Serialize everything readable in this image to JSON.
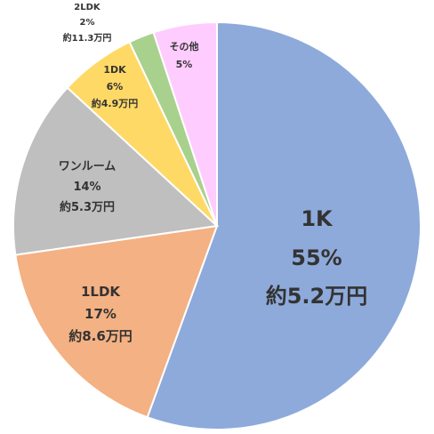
{
  "chart_data": {
    "type": "pie",
    "slices": [
      {
        "name": "1K",
        "percent_label": "55%",
        "rent_label": "約5.2万円",
        "value": 55,
        "color": "#8eaadb"
      },
      {
        "name": "1LDK",
        "percent_label": "17%",
        "rent_label": "約8.6万円",
        "value": 17,
        "color": "#f4b183"
      },
      {
        "name": "ワンルーム",
        "percent_label": "14%",
        "rent_label": "約5.3万円",
        "value": 14,
        "color": "#bfbfbf"
      },
      {
        "name": "1DK",
        "percent_label": "6%",
        "rent_label": "約4.9万円",
        "value": 6,
        "color": "#ffd966"
      },
      {
        "name": "2LDK",
        "percent_label": "2%",
        "rent_label": "約11.3万円",
        "value": 2,
        "color": "#a9d18e"
      },
      {
        "name": "その他",
        "percent_label": "5%",
        "rent_label": "",
        "value": 5,
        "color": "#ffccff"
      }
    ],
    "start_angle_deg": 0,
    "direction": "clockwise",
    "border_color": "#ffffff"
  }
}
